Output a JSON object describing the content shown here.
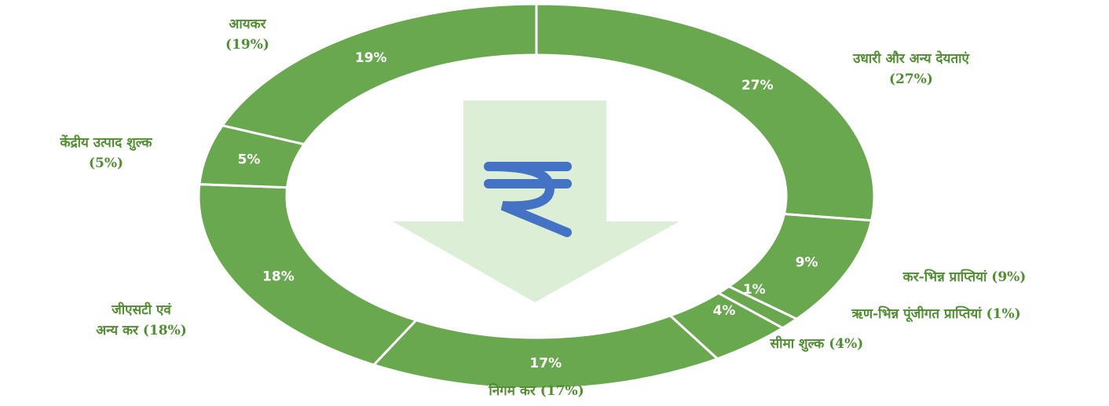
{
  "chart_data": {
    "type": "donut",
    "categories": [
      "उधारी और अन्य देयताएं\n(27%)",
      "कर-भिन्न प्राप्तियां (9%)",
      "ऋण-भिन्न पूंजीगत प्राप्तियां (1%)",
      "सीमा शुल्क (4%)",
      "निगम कर (17%)",
      "जीएसटी एवं\nअन्य कर (18%)",
      "केंद्रीय उत्पाद शुल्क\n(5%)",
      "आयकर\n(19%)"
    ],
    "values": [
      27,
      9,
      1,
      4,
      17,
      18,
      5,
      19
    ],
    "value_labels": [
      "27%",
      "9%",
      "1%",
      "4%",
      "17%",
      "18%",
      "5%",
      "19%"
    ],
    "color": "#6aa84f"
  }
}
